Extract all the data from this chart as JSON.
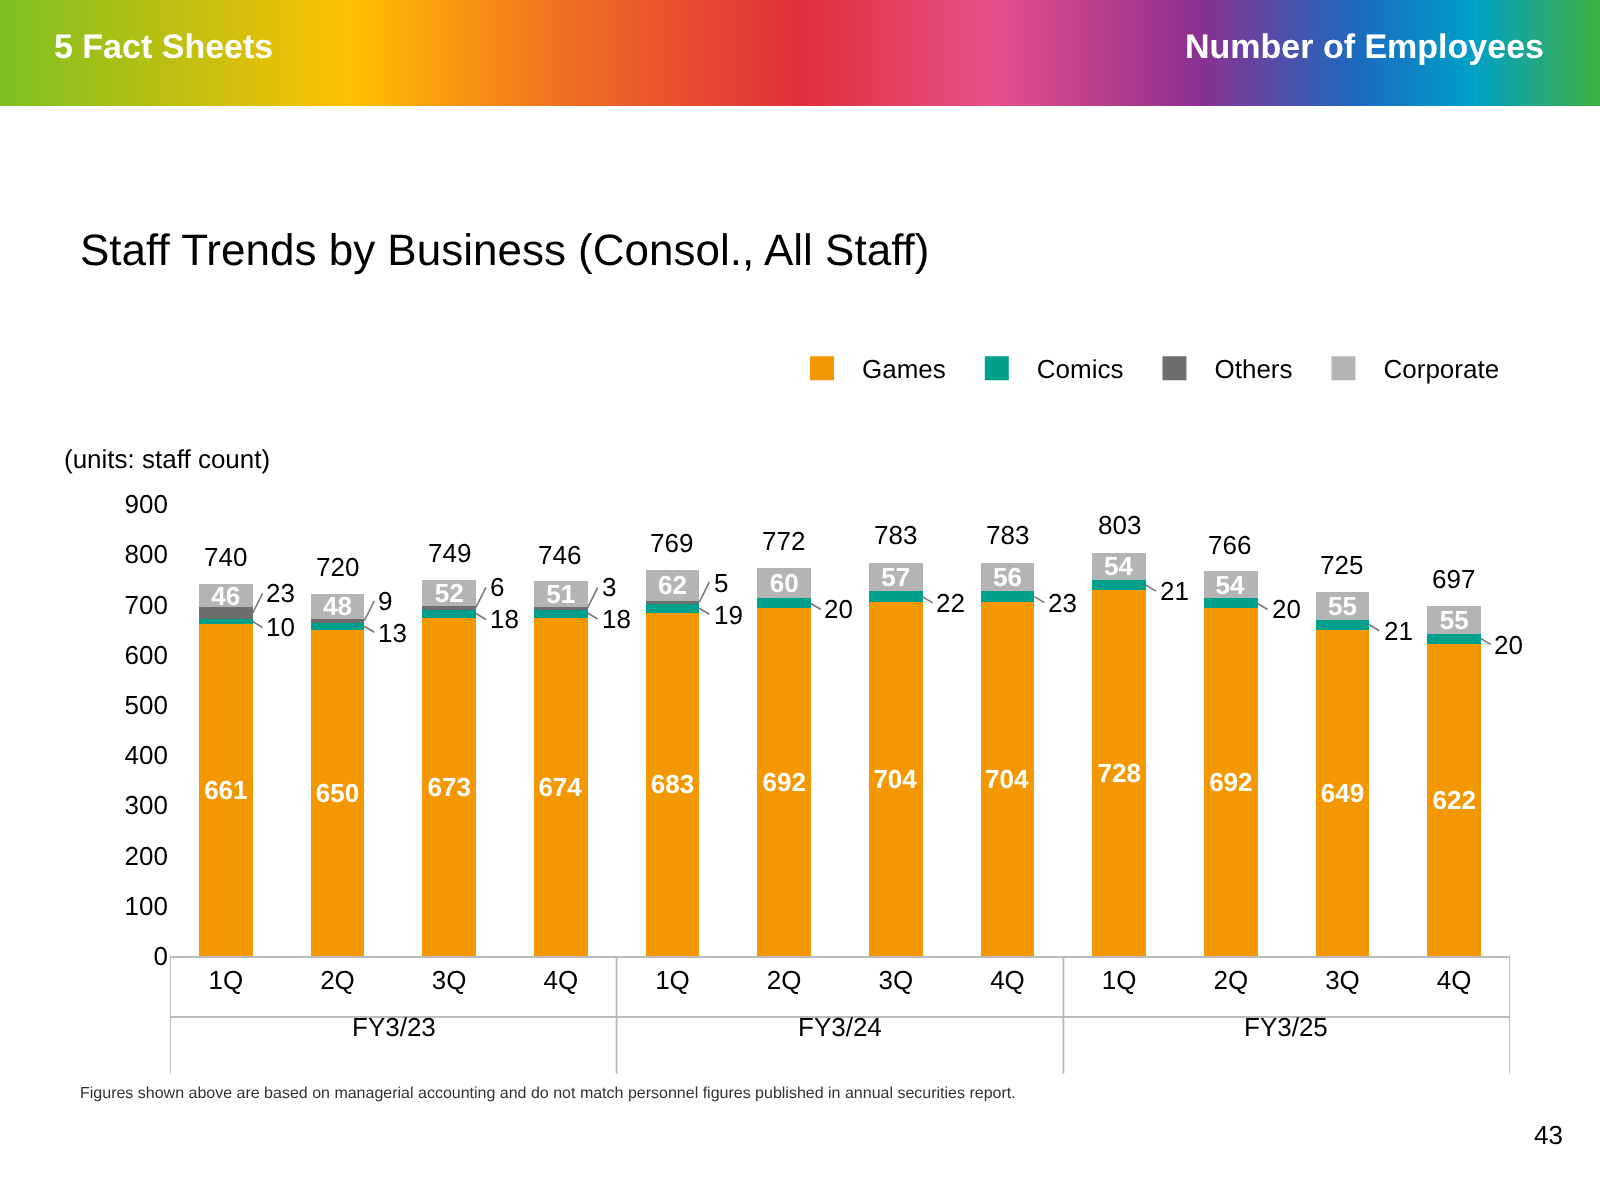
{
  "chart_data": {
    "type": "bar",
    "stacked": true,
    "title": "Staff Trends by Business (Consol., All Staff)",
    "ylabel": "(units: staff count)",
    "categories": [
      "1Q",
      "2Q",
      "3Q",
      "4Q",
      "1Q",
      "2Q",
      "3Q",
      "4Q",
      "1Q",
      "2Q",
      "3Q",
      "4Q"
    ],
    "series": [
      {
        "name": "Games",
        "color": "#f39800",
        "values": [
          661,
          650,
          673,
          674,
          683,
          692,
          704,
          704,
          728,
          692,
          649,
          622
        ]
      },
      {
        "name": "Comics",
        "color": "#00a08a",
        "values": [
          10,
          13,
          18,
          18,
          19,
          20,
          22,
          23,
          21,
          20,
          21,
          20
        ]
      },
      {
        "name": "Others",
        "color": "#6e6e6e",
        "values": [
          23,
          9,
          6,
          3,
          5,
          null,
          null,
          null,
          null,
          null,
          null,
          null
        ]
      },
      {
        "name": "Corporate",
        "color": "#b4b4b4",
        "values": [
          46,
          48,
          52,
          51,
          62,
          60,
          57,
          56,
          54,
          54,
          55,
          55
        ]
      }
    ],
    "totals": [
      "740",
      "720",
      "749",
      "746",
      "769",
      "772",
      "783",
      "783",
      "803",
      "766",
      "725",
      "697"
    ],
    "data_labels": true,
    "ylim": [
      0,
      900
    ],
    "yticks": [
      0,
      100,
      200,
      300,
      400,
      500,
      600,
      700,
      800,
      900
    ],
    "grid": false,
    "legend": "top right",
    "annotations": [
      "5   Fact Sheets",
      "Number of Employees",
      "FY3/23",
      "FY3/24",
      "FY3/25",
      "Figures shown above are based on managerial accounting and do not match personnel figures published in annual securities report.",
      "43"
    ]
  }
}
